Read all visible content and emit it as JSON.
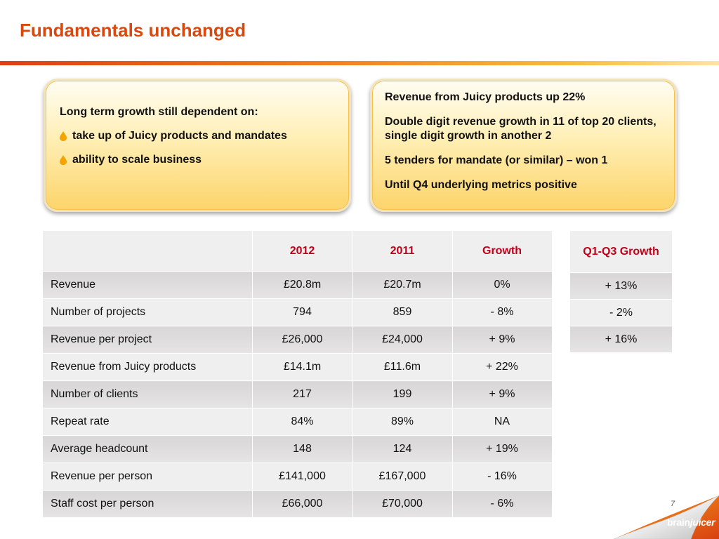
{
  "title": "Fundamentals unchanged",
  "left_box": {
    "lead": "Long term growth still dependent on:",
    "bullets": [
      "take up of Juicy products and mandates",
      "ability to scale business"
    ]
  },
  "right_box": {
    "points": [
      "Revenue from Juicy products up 22%",
      "Double digit revenue growth in 11 of top 20 clients, single digit growth in another 2",
      "5 tenders for mandate (or similar) – won 1",
      "Until Q4 underlying metrics positive"
    ]
  },
  "table": {
    "headers": [
      "",
      "2012",
      "2011",
      "Growth"
    ],
    "rows": [
      [
        "Revenue",
        "£20.8m",
        "£20.7m",
        "0%"
      ],
      [
        "Number of projects",
        "794",
        "859",
        "- 8%"
      ],
      [
        "Revenue per project",
        "£26,000",
        "£24,000",
        "+ 9%"
      ],
      [
        "Revenue from Juicy products",
        "£14.1m",
        "£11.6m",
        "+ 22%"
      ],
      [
        "Number of clients",
        "217",
        "199",
        "+ 9%"
      ],
      [
        "Repeat rate",
        "84%",
        "89%",
        "NA"
      ],
      [
        "Average headcount",
        "148",
        "124",
        "+ 19%"
      ],
      [
        "Revenue per person",
        "£141,000",
        "£167,000",
        "- 16%"
      ],
      [
        "Staff cost per person",
        "£66,000",
        "£70,000",
        "- 6%"
      ]
    ]
  },
  "side_table": {
    "header": "Q1-Q3 Growth",
    "rows": [
      "+ 13%",
      "- 2%",
      "+ 16%"
    ]
  },
  "footer": {
    "page_number": "7",
    "logo_brain": "brain",
    "logo_juicer": "juicer"
  },
  "colors": {
    "title": "#d9480f",
    "header_text": "#c0001a",
    "bullet_flame": "#f5a300"
  }
}
